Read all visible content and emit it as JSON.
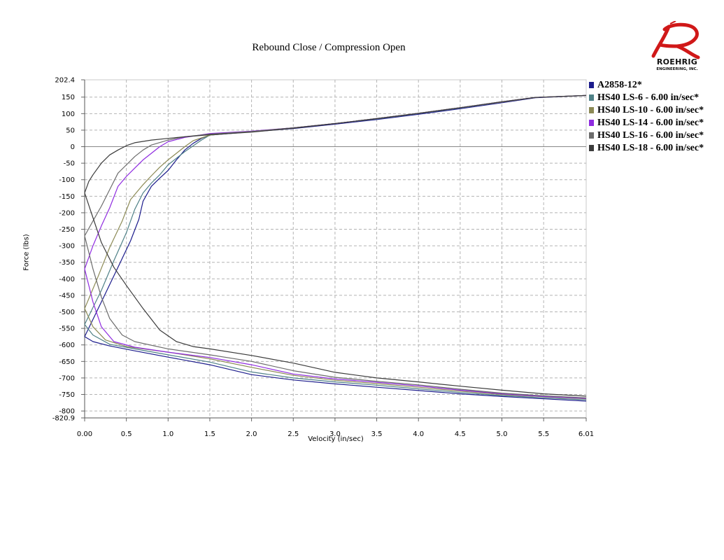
{
  "chart_data": {
    "type": "line",
    "title": "Rebound Close / Compression Open",
    "xlabel": "Velocity (in/sec)",
    "ylabel": "Force (lbs)",
    "xlim": [
      0,
      6.01
    ],
    "ylim": [
      -820.9,
      202.4
    ],
    "x_ticks": [
      "0.00",
      "0.5",
      "1.0",
      "1.5",
      "2.0",
      "2.5",
      "3.0",
      "3.5",
      "4.0",
      "4.5",
      "5.0",
      "5.5",
      "6.01"
    ],
    "y_ticks": [
      "202.4",
      "150",
      "100",
      "50",
      "0",
      "-50",
      "-100",
      "-150",
      "-200",
      "-250",
      "-300",
      "-350",
      "-400",
      "-450",
      "-500",
      "-550",
      "-600",
      "-650",
      "-700",
      "-750",
      "-800",
      "-820.9"
    ],
    "grid": true,
    "legend": "right",
    "series": [
      {
        "name": "A2858-12*",
        "color": "#1c1c8c",
        "upper": [
          [
            0,
            -575
          ],
          [
            0.2,
            -470
          ],
          [
            0.4,
            -365
          ],
          [
            0.55,
            -285
          ],
          [
            0.65,
            -220
          ],
          [
            0.7,
            -165
          ],
          [
            0.8,
            -120
          ],
          [
            0.9,
            -95
          ],
          [
            1.0,
            -72
          ],
          [
            1.1,
            -40
          ],
          [
            1.2,
            -10
          ],
          [
            1.3,
            10
          ],
          [
            1.4,
            25
          ],
          [
            1.5,
            35
          ],
          [
            2.0,
            45
          ],
          [
            2.5,
            55
          ],
          [
            3.0,
            68
          ],
          [
            3.5,
            82
          ],
          [
            4.0,
            98
          ],
          [
            4.5,
            115
          ],
          [
            5.0,
            133
          ],
          [
            5.4,
            148
          ],
          [
            6.01,
            155
          ]
        ],
        "lower": [
          [
            0,
            -575
          ],
          [
            0.1,
            -590
          ],
          [
            0.3,
            -603
          ],
          [
            0.6,
            -618
          ],
          [
            1.0,
            -637
          ],
          [
            1.5,
            -660
          ],
          [
            2.0,
            -690
          ],
          [
            2.5,
            -706
          ],
          [
            3.0,
            -718
          ],
          [
            3.5,
            -728
          ],
          [
            4.0,
            -738
          ],
          [
            4.5,
            -748
          ],
          [
            5.0,
            -756
          ],
          [
            5.5,
            -763
          ],
          [
            6.01,
            -770
          ]
        ]
      },
      {
        "name": "HS40 LS-6 - 6.00 in/sec*",
        "color": "#4f8187",
        "upper": [
          [
            0,
            -538
          ],
          [
            0.2,
            -435
          ],
          [
            0.35,
            -345
          ],
          [
            0.5,
            -260
          ],
          [
            0.6,
            -190
          ],
          [
            0.7,
            -140
          ],
          [
            0.8,
            -110
          ],
          [
            0.9,
            -85
          ],
          [
            1.0,
            -55
          ],
          [
            1.2,
            -15
          ],
          [
            1.4,
            20
          ],
          [
            1.5,
            35
          ],
          [
            2.0,
            46
          ],
          [
            2.5,
            57
          ],
          [
            3.0,
            70
          ],
          [
            3.5,
            84
          ],
          [
            4.0,
            100
          ],
          [
            4.5,
            117
          ],
          [
            5.0,
            135
          ],
          [
            5.4,
            149
          ],
          [
            6.01,
            155
          ]
        ],
        "lower": [
          [
            0,
            -538
          ],
          [
            0.1,
            -570
          ],
          [
            0.3,
            -598
          ],
          [
            0.6,
            -612
          ],
          [
            1.0,
            -630
          ],
          [
            1.5,
            -652
          ],
          [
            2.0,
            -682
          ],
          [
            2.5,
            -700
          ],
          [
            3.0,
            -712
          ],
          [
            3.5,
            -722
          ],
          [
            4.0,
            -733
          ],
          [
            4.5,
            -744
          ],
          [
            5.0,
            -753
          ],
          [
            5.5,
            -760
          ],
          [
            6.01,
            -766
          ]
        ]
      },
      {
        "name": "HS40 LS-10 - 6.00 in/sec*",
        "color": "#8c8a55",
        "upper": [
          [
            0,
            -490
          ],
          [
            0.15,
            -400
          ],
          [
            0.3,
            -305
          ],
          [
            0.45,
            -225
          ],
          [
            0.55,
            -160
          ],
          [
            0.7,
            -115
          ],
          [
            0.8,
            -88
          ],
          [
            0.9,
            -62
          ],
          [
            1.0,
            -40
          ],
          [
            1.1,
            -20
          ],
          [
            1.2,
            0
          ],
          [
            1.3,
            18
          ],
          [
            1.5,
            35
          ],
          [
            2.0,
            46
          ],
          [
            2.5,
            57
          ],
          [
            3.0,
            70
          ],
          [
            3.5,
            85
          ],
          [
            4.0,
            101
          ],
          [
            4.5,
            118
          ],
          [
            5.0,
            135
          ],
          [
            5.4,
            149
          ],
          [
            6.01,
            155
          ]
        ],
        "lower": [
          [
            0,
            -490
          ],
          [
            0.1,
            -545
          ],
          [
            0.25,
            -585
          ],
          [
            0.5,
            -605
          ],
          [
            1.0,
            -622
          ],
          [
            1.5,
            -642
          ],
          [
            2.0,
            -668
          ],
          [
            2.5,
            -692
          ],
          [
            3.0,
            -707
          ],
          [
            3.5,
            -717
          ],
          [
            4.0,
            -728
          ],
          [
            4.5,
            -740
          ],
          [
            5.0,
            -750
          ],
          [
            5.5,
            -757
          ],
          [
            6.01,
            -763
          ]
        ]
      },
      {
        "name": "HS40 LS-14 - 6.00 in/sec*",
        "color": "#8f2be0",
        "upper": [
          [
            0,
            -370
          ],
          [
            0.1,
            -300
          ],
          [
            0.2,
            -240
          ],
          [
            0.3,
            -185
          ],
          [
            0.4,
            -120
          ],
          [
            0.5,
            -90
          ],
          [
            0.6,
            -65
          ],
          [
            0.7,
            -40
          ],
          [
            0.8,
            -20
          ],
          [
            0.9,
            0
          ],
          [
            1.0,
            15
          ],
          [
            1.2,
            28
          ],
          [
            1.5,
            40
          ],
          [
            2.0,
            47
          ],
          [
            2.5,
            57
          ],
          [
            3.0,
            70
          ],
          [
            3.5,
            85
          ],
          [
            4.0,
            101
          ],
          [
            4.5,
            118
          ],
          [
            5.0,
            136
          ],
          [
            5.4,
            149
          ],
          [
            6.01,
            155
          ]
        ],
        "lower": [
          [
            0,
            -370
          ],
          [
            0.1,
            -470
          ],
          [
            0.2,
            -545
          ],
          [
            0.35,
            -590
          ],
          [
            0.6,
            -607
          ],
          [
            1.0,
            -622
          ],
          [
            1.5,
            -638
          ],
          [
            2.0,
            -660
          ],
          [
            2.5,
            -688
          ],
          [
            3.0,
            -703
          ],
          [
            3.5,
            -713
          ],
          [
            4.0,
            -724
          ],
          [
            4.5,
            -737
          ],
          [
            5.0,
            -748
          ],
          [
            5.5,
            -756
          ],
          [
            6.01,
            -762
          ]
        ]
      },
      {
        "name": "HS40 LS-16 - 6.00 in/sec*",
        "color": "#6c6c6c",
        "upper": [
          [
            0,
            -270
          ],
          [
            0.1,
            -225
          ],
          [
            0.2,
            -180
          ],
          [
            0.3,
            -130
          ],
          [
            0.4,
            -80
          ],
          [
            0.5,
            -55
          ],
          [
            0.6,
            -30
          ],
          [
            0.7,
            -10
          ],
          [
            0.8,
            5
          ],
          [
            1.0,
            20
          ],
          [
            1.2,
            30
          ],
          [
            1.5,
            38
          ],
          [
            2.0,
            46
          ],
          [
            2.5,
            57
          ],
          [
            3.0,
            70
          ],
          [
            3.5,
            85
          ],
          [
            4.0,
            101
          ],
          [
            4.5,
            118
          ],
          [
            5.0,
            136
          ],
          [
            5.4,
            149
          ],
          [
            6.01,
            155
          ]
        ],
        "lower": [
          [
            0,
            -270
          ],
          [
            0.1,
            -370
          ],
          [
            0.2,
            -455
          ],
          [
            0.3,
            -520
          ],
          [
            0.45,
            -570
          ],
          [
            0.6,
            -590
          ],
          [
            1.0,
            -612
          ],
          [
            1.5,
            -630
          ],
          [
            2.0,
            -650
          ],
          [
            2.5,
            -678
          ],
          [
            3.0,
            -698
          ],
          [
            3.5,
            -710
          ],
          [
            4.0,
            -721
          ],
          [
            4.5,
            -734
          ],
          [
            5.0,
            -746
          ],
          [
            5.5,
            -754
          ],
          [
            6.01,
            -760
          ]
        ]
      },
      {
        "name": "HS40 LS-18 - 6.00 in/sec*",
        "color": "#3b3b3b",
        "upper": [
          [
            0,
            -140
          ],
          [
            0.05,
            -105
          ],
          [
            0.1,
            -85
          ],
          [
            0.2,
            -50
          ],
          [
            0.3,
            -25
          ],
          [
            0.4,
            -10
          ],
          [
            0.5,
            3
          ],
          [
            0.6,
            12
          ],
          [
            0.8,
            20
          ],
          [
            1.0,
            25
          ],
          [
            1.2,
            30
          ],
          [
            1.5,
            36
          ],
          [
            2.0,
            44
          ],
          [
            2.5,
            56
          ],
          [
            3.0,
            70
          ],
          [
            3.5,
            85
          ],
          [
            4.0,
            101
          ],
          [
            4.5,
            118
          ],
          [
            5.0,
            136
          ],
          [
            5.4,
            149
          ],
          [
            6.01,
            155
          ]
        ],
        "lower": [
          [
            0,
            -140
          ],
          [
            0.1,
            -215
          ],
          [
            0.2,
            -290
          ],
          [
            0.35,
            -365
          ],
          [
            0.5,
            -420
          ],
          [
            0.7,
            -490
          ],
          [
            0.9,
            -555
          ],
          [
            1.1,
            -590
          ],
          [
            1.3,
            -605
          ],
          [
            1.5,
            -612
          ],
          [
            2.0,
            -632
          ],
          [
            2.5,
            -655
          ],
          [
            3.0,
            -683
          ],
          [
            3.5,
            -700
          ],
          [
            4.0,
            -712
          ],
          [
            4.5,
            -725
          ],
          [
            5.0,
            -737
          ],
          [
            5.5,
            -748
          ],
          [
            6.01,
            -755
          ]
        ]
      }
    ]
  },
  "logo": {
    "word": "ROEHRIG",
    "sub": "ENGINEERING, INC.",
    "color": "#d01818"
  }
}
